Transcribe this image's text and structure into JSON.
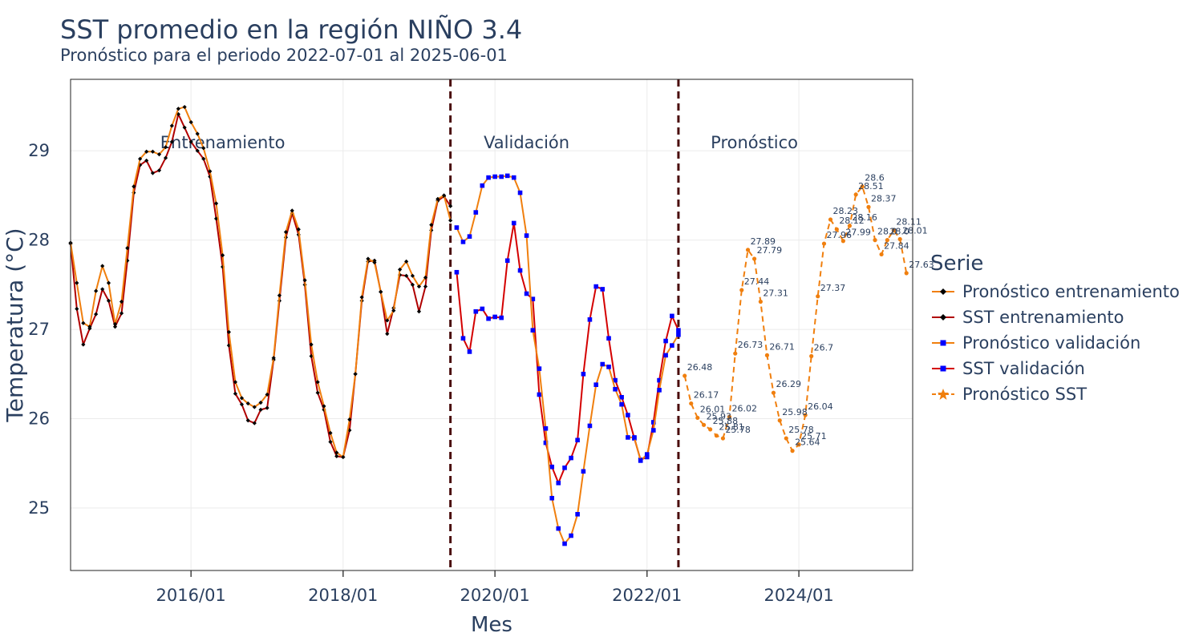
{
  "header": {
    "title": "SST promedio en la región NIÑO 3.4",
    "subtitle": "Pronóstico para el periodo 2022-07-01 al 2025-06-01"
  },
  "legend": {
    "title": "Serie",
    "items": [
      {
        "label": "Pronóstico entrenamiento",
        "color": "#f07f0e",
        "marker": "diamond",
        "marker_color": "#000000",
        "dash": "solid"
      },
      {
        "label": "SST entrenamiento",
        "color": "#b00000",
        "marker": "diamond",
        "marker_color": "#000000",
        "dash": "solid"
      },
      {
        "label": "Pronóstico validación",
        "color": "#f07f0e",
        "marker": "square",
        "marker_color": "#0000ff",
        "dash": "solid"
      },
      {
        "label": "SST validación",
        "color": "#d40000",
        "marker": "square",
        "marker_color": "#0000ff",
        "dash": "solid"
      },
      {
        "label": "Pronóstico SST",
        "color": "#f07f0e",
        "marker": "star",
        "marker_color": "#f07f0e",
        "dash": "dash"
      }
    ]
  },
  "chart_data": {
    "type": "line",
    "title": "SST promedio en la región NIÑO 3.4",
    "subtitle": "Pronóstico para el periodo 2022-07-01 al 2025-06-01",
    "xlabel": "Mes",
    "ylabel": "Temperatura (°C)",
    "xlim": [
      "2014-06-01",
      "2025-07-01"
    ],
    "ylim": [
      24.3,
      29.8
    ],
    "x_ticks": [
      "2016-01-01",
      "2018-01-01",
      "2020-01-01",
      "2022-01-01",
      "2024-01-01"
    ],
    "x_tick_labels": [
      "2016/01",
      "2018/01",
      "2020/01",
      "2022/01",
      "2024/01"
    ],
    "y_ticks": [
      25,
      26,
      27,
      28,
      29
    ],
    "grid": true,
    "legend_position": "right",
    "vlines": [
      "2019-06-01",
      "2022-06-01"
    ],
    "annotations": [
      {
        "text": "Entrenamiento",
        "x": "2016-06-01",
        "y": 29.08
      },
      {
        "text": "Validación",
        "x": "2020-06-01",
        "y": 29.08
      },
      {
        "text": "Pronóstico",
        "x": "2023-06-01",
        "y": 29.08
      }
    ],
    "series": [
      {
        "name": "Pronóstico entrenamiento",
        "start": "2014-06-01",
        "values": [
          27.97,
          27.52,
          27.07,
          27.03,
          27.43,
          27.71,
          27.52,
          27.06,
          27.31,
          27.91,
          28.6,
          28.91,
          28.99,
          28.99,
          28.96,
          29.04,
          29.28,
          29.47,
          29.49,
          29.32,
          29.19,
          29.03,
          28.77,
          28.41,
          27.83,
          26.97,
          26.41,
          26.23,
          26.17,
          26.13,
          26.18,
          26.27,
          26.68,
          27.38,
          28.09,
          28.33,
          28.12,
          27.55,
          26.83,
          26.41,
          26.14,
          25.84,
          25.62,
          25.57,
          25.99,
          26.5,
          27.36,
          27.79,
          27.75,
          27.42,
          27.1,
          27.21,
          27.67,
          27.76,
          27.6,
          27.48,
          27.58,
          28.17,
          28.46,
          28.5,
          28.22
        ]
      },
      {
        "name": "SST entrenamiento",
        "start": "2014-06-01",
        "values": [
          27.96,
          27.23,
          26.83,
          27.01,
          27.17,
          27.45,
          27.32,
          27.03,
          27.18,
          27.77,
          28.53,
          28.84,
          28.89,
          28.75,
          28.78,
          28.92,
          29.1,
          29.41,
          29.26,
          29.1,
          29.0,
          28.91,
          28.71,
          28.24,
          27.7,
          26.82,
          26.28,
          26.16,
          25.98,
          25.95,
          26.1,
          26.12,
          26.66,
          27.32,
          28.03,
          28.3,
          28.06,
          27.5,
          26.7,
          26.29,
          26.1,
          25.74,
          25.58,
          25.57,
          25.87,
          26.5,
          27.32,
          27.76,
          27.77,
          27.42,
          26.95,
          27.24,
          27.61,
          27.6,
          27.5,
          27.2,
          27.48,
          28.11,
          28.44,
          28.49,
          28.38
        ]
      },
      {
        "name": "Pronóstico validación",
        "start": "2019-07-01",
        "values": [
          28.14,
          27.98,
          28.04,
          28.31,
          28.61,
          28.7,
          28.71,
          28.71,
          28.72,
          28.7,
          28.53,
          28.05,
          26.99,
          26.56,
          25.89,
          25.11,
          24.77,
          24.6,
          24.69,
          24.93,
          25.41,
          25.92,
          26.38,
          26.61,
          26.58,
          26.33,
          26.16,
          25.79,
          25.79,
          25.53,
          25.6,
          25.87,
          26.32,
          26.71,
          26.82,
          26.94
        ]
      },
      {
        "name": "SST validación",
        "start": "2019-07-01",
        "values": [
          27.64,
          26.9,
          26.75,
          27.2,
          27.23,
          27.12,
          27.14,
          27.13,
          27.77,
          28.19,
          27.66,
          27.4,
          27.34,
          26.27,
          25.73,
          25.46,
          25.28,
          25.45,
          25.56,
          25.76,
          26.5,
          27.11,
          27.48,
          27.45,
          26.9,
          26.43,
          26.24,
          26.04,
          25.78,
          25.54,
          25.57,
          25.96,
          26.43,
          26.87,
          27.15,
          26.99
        ]
      },
      {
        "name": "Pronóstico SST",
        "start": "2022-07-01",
        "values": [
          26.48,
          26.17,
          26.01,
          25.93,
          25.88,
          25.81,
          25.78,
          26.02,
          26.73,
          27.44,
          27.89,
          27.79,
          27.31,
          26.71,
          26.29,
          25.98,
          25.78,
          25.64,
          25.71,
          26.04,
          26.7,
          27.37,
          27.96,
          28.23,
          28.12,
          27.99,
          28.16,
          28.51,
          28.6,
          28.37,
          28.0,
          27.84,
          28.0,
          28.11,
          28.01,
          27.63
        ],
        "data_labels": [
          "26.48",
          "26.17",
          "26.01",
          "25.93",
          "25.88",
          "25.81",
          "25.78",
          "26.02",
          "26.73",
          "27.44",
          "27.89",
          "27.79",
          "27.31",
          "26.71",
          "26.29",
          "25.98",
          "25.78",
          "25.64",
          "25.71",
          "26.04",
          "26.7",
          "27.37",
          "27.96",
          "28.23",
          "28.12",
          "27.99",
          "28.16",
          "28.51",
          "28.6",
          "28.37",
          "28.0",
          "27.84",
          "28.0",
          "28.11",
          "28.01",
          "27.63"
        ]
      }
    ]
  }
}
